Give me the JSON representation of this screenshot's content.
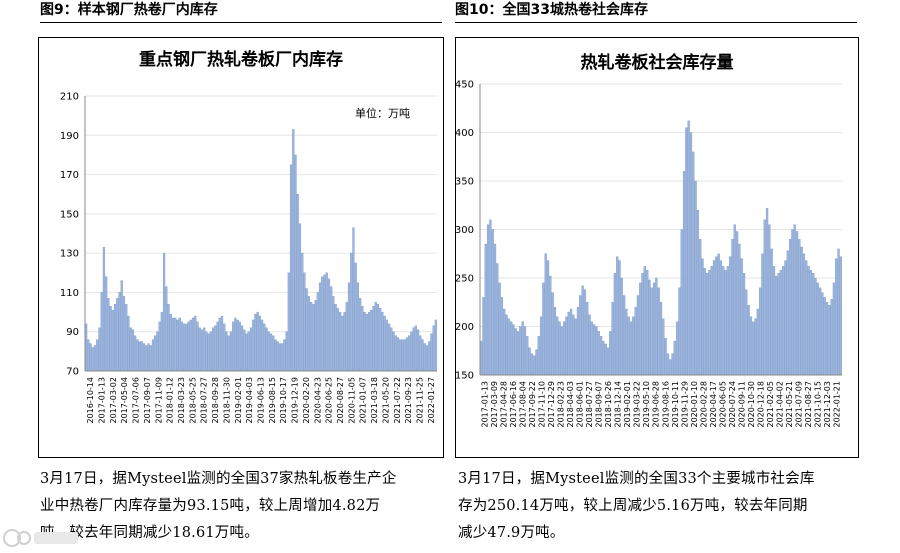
{
  "headers": {
    "left": "图9：样本钢厂热卷厂内库存",
    "right": "图10：全国33城热卷社会库存"
  },
  "chart_data": [
    {
      "type": "bar",
      "title": "重点钢厂热轧卷板厂内库存",
      "unit_label": "单位：万吨",
      "ylim": [
        70,
        210
      ],
      "yticks": [
        "70",
        "90",
        "110",
        "130",
        "150",
        "170",
        "190",
        "210"
      ],
      "xticks": [
        "2016-10-14",
        "2017-01-13",
        "2017-03-02",
        "2017-05-04",
        "2017-07-06",
        "2017-09-07",
        "2017-11-09",
        "2018-01-12",
        "2018-03-23",
        "2018-05-25",
        "2018-07-27",
        "2018-09-28",
        "2018-11-30",
        "2019-02-01",
        "2019-04-03",
        "2019-06-13",
        "2019-08-15",
        "2019-10-17",
        "2019-12-19",
        "2020-02-20",
        "2020-04-23",
        "2020-06-25",
        "2020-08-27",
        "2020-11-05",
        "2021-01-07",
        "2021-03-18",
        "2021-05-20",
        "2021-07-22",
        "2021-09-23",
        "2021-11-25",
        "2022-01-27"
      ],
      "values": [
        94,
        86,
        84,
        82,
        83,
        86,
        92,
        110,
        133,
        118,
        107,
        103,
        101,
        104,
        107,
        110,
        116,
        108,
        104,
        98,
        92,
        91,
        88,
        86,
        85,
        85,
        84,
        83,
        84,
        83,
        86,
        88,
        90,
        95,
        100,
        130,
        113,
        104,
        99,
        97,
        97,
        96,
        97,
        95,
        94,
        94,
        95,
        96,
        97,
        98,
        95,
        92,
        91,
        92,
        90,
        89,
        90,
        92,
        93,
        95,
        97,
        98,
        94,
        90,
        88,
        90,
        95,
        97,
        96,
        95,
        93,
        91,
        89,
        90,
        92,
        96,
        99,
        100,
        98,
        96,
        94,
        92,
        90,
        89,
        88,
        86,
        85,
        84,
        84,
        86,
        90,
        120,
        175,
        193,
        180,
        160,
        145,
        130,
        120,
        112,
        108,
        105,
        104,
        106,
        110,
        115,
        118,
        119,
        120,
        117,
        113,
        108,
        104,
        102,
        100,
        98,
        100,
        105,
        115,
        130,
        143,
        125,
        115,
        107,
        103,
        100,
        99,
        100,
        101,
        103,
        105,
        104,
        102,
        100,
        98,
        96,
        94,
        92,
        90,
        88,
        87,
        86,
        86,
        86,
        87,
        88,
        90,
        92,
        93,
        91,
        88,
        86,
        84,
        83,
        85,
        89,
        93,
        96
      ]
    },
    {
      "type": "bar",
      "title": "热轧卷板社会库存量",
      "ylim": [
        150,
        450
      ],
      "yticks": [
        "150",
        "200",
        "250",
        "300",
        "350",
        "400",
        "450"
      ],
      "xticks": [
        "2017-01-13",
        "2017-03-09",
        "2017-04-28",
        "2017-06-16",
        "2017-08-04",
        "2017-09-22",
        "2017-11-10",
        "2017-12-29",
        "2018-02-23",
        "2018-04-03",
        "2018-06-01",
        "2018-07-27",
        "2018-09-07",
        "2018-10-26",
        "2018-12-14",
        "2019-02-01",
        "2019-03-22",
        "2019-05-10",
        "2019-06-28",
        "2019-08-16",
        "2019-10-11",
        "2019-11-29",
        "2020-01-10",
        "2020-02-28",
        "2020-04-17",
        "2020-06-05",
        "2020-07-24",
        "2020-09-11",
        "2020-10-30",
        "2020-12-18",
        "2021-02-05",
        "2021-04-02",
        "2021-05-21",
        "2021-07-09",
        "2021-08-27",
        "2021-10-15",
        "2021-12-03",
        "2022-01-21"
      ],
      "values": [
        185,
        230,
        285,
        305,
        310,
        300,
        285,
        265,
        245,
        230,
        218,
        212,
        208,
        205,
        202,
        198,
        195,
        200,
        205,
        200,
        190,
        178,
        172,
        170,
        176,
        190,
        210,
        245,
        275,
        268,
        252,
        235,
        220,
        210,
        205,
        200,
        205,
        210,
        215,
        218,
        212,
        208,
        220,
        232,
        242,
        238,
        225,
        212,
        205,
        202,
        200,
        195,
        190,
        185,
        182,
        178,
        195,
        225,
        255,
        272,
        268,
        250,
        232,
        218,
        210,
        205,
        210,
        220,
        232,
        245,
        255,
        262,
        258,
        248,
        240,
        245,
        250,
        240,
        225,
        208,
        188,
        172,
        166,
        172,
        185,
        205,
        240,
        300,
        360,
        405,
        412,
        400,
        380,
        350,
        320,
        290,
        270,
        260,
        255,
        258,
        262,
        268,
        272,
        275,
        268,
        262,
        258,
        262,
        272,
        290,
        305,
        298,
        285,
        270,
        255,
        238,
        222,
        210,
        205,
        208,
        218,
        240,
        275,
        310,
        322,
        305,
        280,
        262,
        252,
        255,
        258,
        262,
        268,
        278,
        290,
        300,
        305,
        298,
        290,
        282,
        275,
        268,
        262,
        258,
        255,
        250,
        245,
        240,
        235,
        230,
        225,
        222,
        228,
        245,
        270,
        280,
        272
      ]
    }
  ],
  "captions": {
    "left": [
      "3月17日，据Mysteel监测的全国37家热轧板卷生产企",
      "业中热卷厂内库存量为93.15吨，较上周增加4.82万",
      "吨，较去年同期减少18.61万吨。"
    ],
    "right": [
      "3月17日，据Mysteel监测的全国33个主要城市社会库",
      "存为250.14万吨，较上周减少5.16万吨，较去年同期",
      "减少47.9万吨。"
    ]
  },
  "colors": {
    "bar_fill": "#9db5dc",
    "bar_stroke": "#6d8fc4",
    "axis": "#888888",
    "grid": "#e6e6e6"
  }
}
